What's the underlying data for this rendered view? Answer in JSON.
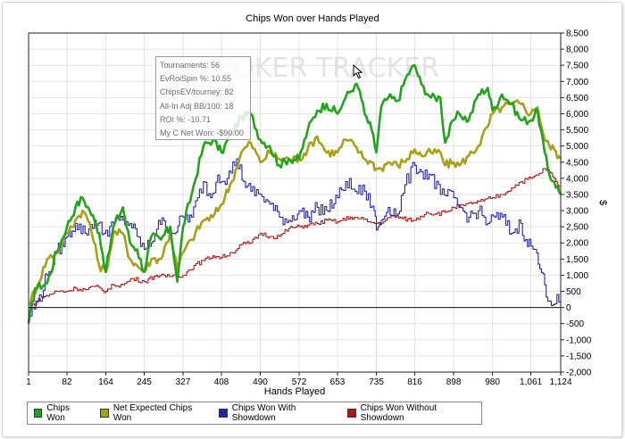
{
  "chart_data": {
    "type": "line",
    "title": "Chips Won over Hands Played",
    "xlabel": "Hands Played",
    "ylabel": "$",
    "xlim": [
      1,
      1124
    ],
    "ylim": [
      -2000,
      8500
    ],
    "x_ticks": [
      "1",
      "82",
      "164",
      "245",
      "327",
      "408",
      "490",
      "572",
      "653",
      "735",
      "816",
      "898",
      "980",
      "1,061",
      "1,124"
    ],
    "y_ticks": [
      "8,500",
      "8,000",
      "7,500",
      "7,000",
      "6,500",
      "6,000",
      "5,500",
      "5,000",
      "4,500",
      "4,000",
      "3,500",
      "3,000",
      "2,500",
      "2,000",
      "1,500",
      "1,000",
      "500",
      "0",
      "-500",
      "-1,000",
      "-1,500",
      "-2,000"
    ],
    "grid": true,
    "legend_position": "bottom",
    "series": [
      {
        "name": "Chips Won",
        "color": "#22a31c",
        "x": [
          1,
          15,
          40,
          60,
          82,
          100,
          115,
          130,
          140,
          150,
          164,
          180,
          200,
          215,
          230,
          245,
          260,
          280,
          300,
          315,
          327,
          345,
          370,
          390,
          408,
          430,
          450,
          470,
          490,
          510,
          530,
          550,
          572,
          590,
          610,
          630,
          653,
          670,
          690,
          700,
          710,
          725,
          735,
          745,
          760,
          780,
          800,
          816,
          830,
          850,
          870,
          880,
          898,
          910,
          930,
          950,
          970,
          980,
          1000,
          1020,
          1040,
          1061,
          1075,
          1090,
          1100,
          1110,
          1124
        ],
        "y": [
          -500,
          600,
          750,
          1700,
          2500,
          3100,
          3400,
          3000,
          2700,
          2300,
          1100,
          2500,
          3100,
          2000,
          1800,
          1100,
          2200,
          2100,
          2500,
          800,
          2500,
          3500,
          5000,
          5200,
          4800,
          5400,
          5900,
          6000,
          5200,
          5000,
          4400,
          4600,
          4600,
          5500,
          6100,
          6300,
          6000,
          6500,
          6900,
          6700,
          6000,
          5500,
          4800,
          6200,
          6500,
          6400,
          7200,
          7500,
          6900,
          6500,
          6500,
          5100,
          5800,
          6000,
          5800,
          6600,
          6800,
          6100,
          6600,
          6300,
          5800,
          5800,
          6100,
          4800,
          4100,
          3900,
          3500
        ]
      },
      {
        "name": "Net Expected Chips Won",
        "color": "#a8a018",
        "x": [
          1,
          20,
          40,
          60,
          82,
          100,
          115,
          130,
          150,
          164,
          180,
          200,
          215,
          230,
          245,
          260,
          280,
          300,
          315,
          327,
          345,
          370,
          390,
          408,
          430,
          450,
          470,
          490,
          510,
          530,
          550,
          572,
          590,
          610,
          630,
          653,
          670,
          690,
          700,
          710,
          725,
          735,
          745,
          760,
          780,
          800,
          816,
          830,
          850,
          870,
          880,
          898,
          910,
          930,
          950,
          970,
          980,
          1000,
          1020,
          1040,
          1061,
          1075,
          1090,
          1100,
          1110,
          1124
        ],
        "y": [
          100,
          700,
          1500,
          1700,
          2300,
          2700,
          3000,
          2600,
          1300,
          1100,
          2300,
          2300,
          1500,
          1300,
          1100,
          1500,
          1500,
          2300,
          1200,
          1700,
          2100,
          2700,
          2800,
          3200,
          3900,
          4800,
          5100,
          4500,
          4800,
          4600,
          4600,
          4600,
          4900,
          5300,
          4800,
          4800,
          5200,
          5000,
          4800,
          4600,
          4500,
          4300,
          4300,
          4500,
          4400,
          4600,
          4900,
          4700,
          4800,
          4800,
          4400,
          4500,
          4400,
          4700,
          5000,
          5600,
          6000,
          6200,
          6300,
          6300,
          6000,
          6200,
          5200,
          5000,
          4900,
          4600
        ]
      },
      {
        "name": "Chips Won With Showdown",
        "color": "#2424a8",
        "x": [
          1,
          20,
          40,
          60,
          82,
          100,
          120,
          140,
          160,
          180,
          200,
          215,
          230,
          245,
          260,
          275,
          290,
          305,
          327,
          345,
          370,
          385,
          400,
          420,
          440,
          455,
          470,
          490,
          510,
          530,
          550,
          572,
          590,
          610,
          630,
          653,
          670,
          690,
          710,
          730,
          735,
          745,
          760,
          780,
          795,
          816,
          830,
          850,
          870,
          898,
          910,
          930,
          950,
          970,
          985,
          1000,
          1020,
          1040,
          1050,
          1061,
          1070,
          1080,
          1090,
          1100,
          1124
        ],
        "y": [
          -300,
          200,
          1000,
          1700,
          2200,
          2600,
          2300,
          2700,
          2300,
          2600,
          2700,
          2600,
          2200,
          1800,
          2000,
          2700,
          2500,
          2300,
          2800,
          2800,
          3900,
          3400,
          4100,
          4000,
          4600,
          3900,
          3600,
          3500,
          3200,
          2800,
          2700,
          3000,
          2800,
          3100,
          3000,
          3400,
          3900,
          3600,
          3600,
          3000,
          2400,
          2700,
          3100,
          2900,
          3800,
          4400,
          4200,
          4100,
          3500,
          3400,
          3100,
          2800,
          3000,
          2600,
          2800,
          2800,
          2300,
          2600,
          2100,
          1900,
          1800,
          1200,
          700,
          200,
          200
        ]
      },
      {
        "name": "Chips Won Without Showdown",
        "color": "#a81818",
        "x": [
          1,
          30,
          60,
          82,
          100,
          120,
          140,
          164,
          180,
          200,
          220,
          245,
          270,
          290,
          310,
          327,
          350,
          370,
          390,
          408,
          430,
          450,
          470,
          490,
          510,
          530,
          550,
          572,
          590,
          610,
          630,
          653,
          680,
          700,
          720,
          735,
          750,
          770,
          790,
          816,
          840,
          860,
          880,
          898,
          920,
          940,
          960,
          980,
          1000,
          1020,
          1040,
          1061,
          1075,
          1090,
          1100,
          1110,
          1124
        ],
        "y": [
          0,
          300,
          500,
          500,
          600,
          550,
          650,
          500,
          700,
          700,
          900,
          800,
          1000,
          950,
          1000,
          1000,
          1300,
          1450,
          1600,
          1550,
          1700,
          1950,
          2000,
          2300,
          2200,
          2200,
          2450,
          2500,
          2550,
          2600,
          2700,
          2650,
          2800,
          2750,
          2650,
          2600,
          2650,
          2850,
          2750,
          2700,
          2950,
          2900,
          2950,
          3100,
          3150,
          3250,
          3300,
          3400,
          3500,
          3700,
          3900,
          4000,
          4100,
          4300,
          4200,
          4000,
          3500
        ]
      }
    ]
  },
  "stats_box": {
    "tournaments": "Tournaments: 56",
    "evroi": "EvRoiSpin %: 10.55",
    "chipsev": "ChipsEV/tourney: 82",
    "allin": "All-In Adj BB/100: 18",
    "roi": "ROI %: -10.71",
    "net_won": "My C Net Won: -$90.00"
  },
  "watermark": "POKER TRACKER"
}
